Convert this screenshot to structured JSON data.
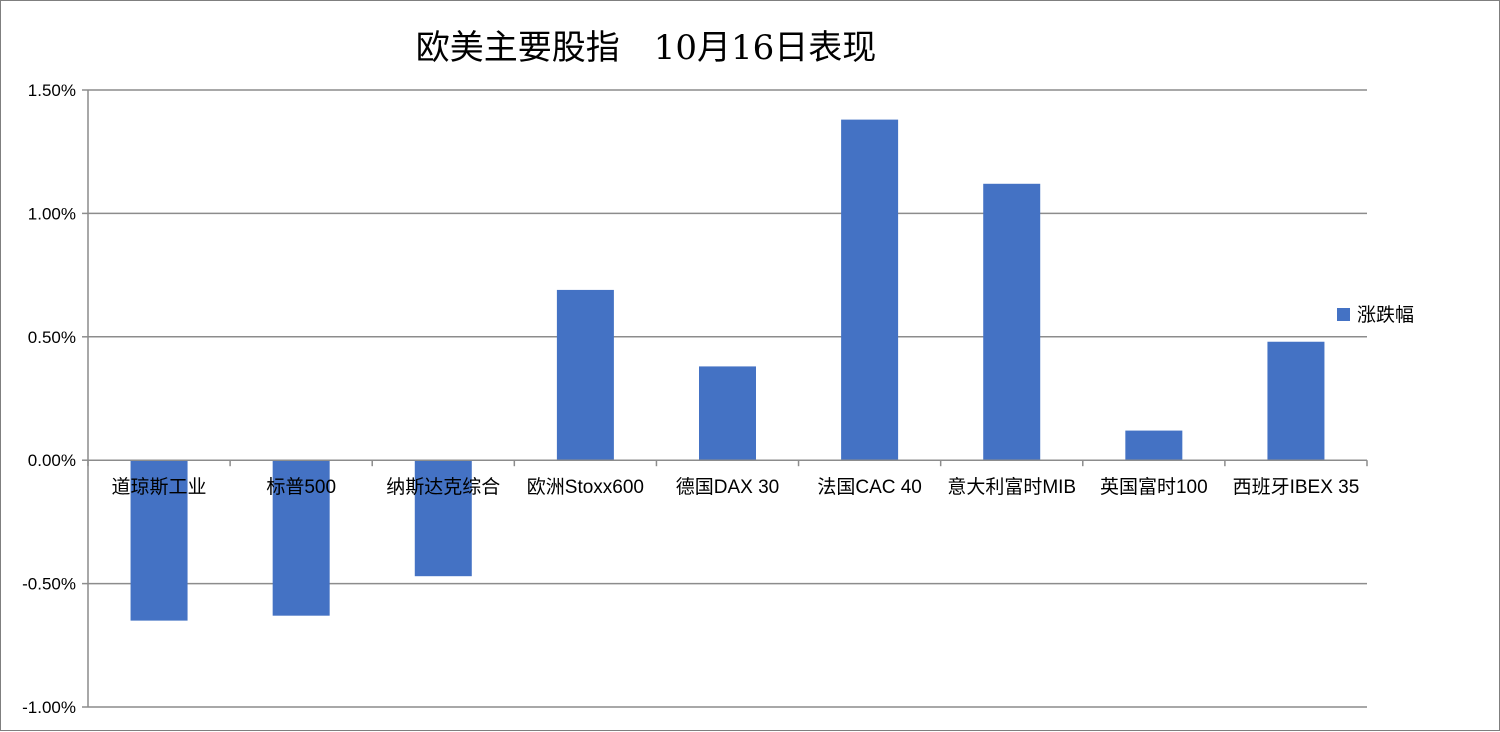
{
  "chart_data": {
    "type": "bar",
    "title": "欧美主要股指　10月16日表现",
    "categories": [
      "道琼斯工业",
      "标普500",
      "纳斯达克综合",
      "欧洲Stoxx600",
      "德国DAX 30",
      "法国CAC 40",
      "意大利富时MIB",
      "英国富时100",
      "西班牙IBEX 35"
    ],
    "series": [
      {
        "name": "涨跌幅",
        "color": "#4472c4",
        "values": [
          -0.65,
          -0.63,
          -0.47,
          0.69,
          0.38,
          1.38,
          1.12,
          0.12,
          0.48
        ]
      }
    ],
    "ylim": [
      -1.0,
      1.5
    ],
    "yticks": [
      1.5,
      1.0,
      0.5,
      0.0,
      -0.5,
      -1.0
    ],
    "ytick_labels": [
      "1.50%",
      "1.00%",
      "0.50%",
      "0.00%",
      "-0.50%",
      "-1.00%"
    ],
    "grid": true,
    "legend": "right"
  }
}
